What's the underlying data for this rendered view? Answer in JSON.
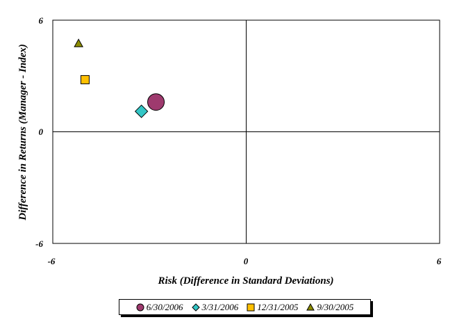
{
  "chart_data": {
    "type": "scatter",
    "xlabel": "Risk (Difference in Standard Deviations)",
    "ylabel": "Difference in Returns (Manager - Index)",
    "xlim": [
      -6,
      6
    ],
    "ylim": [
      -6,
      6
    ],
    "x_ticks": [
      "-6",
      "0",
      "6"
    ],
    "y_ticks": [
      "6",
      "0",
      "-6"
    ],
    "grid": false,
    "legend_position": "bottom",
    "series": [
      {
        "name": "6/30/2006",
        "marker": "circle",
        "color": "#9e3a6e",
        "points": [
          {
            "x": -2.8,
            "y": 1.6
          }
        ]
      },
      {
        "name": "3/31/2006",
        "marker": "diamond",
        "color": "#33c6c6",
        "points": [
          {
            "x": -3.25,
            "y": 1.1
          }
        ]
      },
      {
        "name": "12/31/2005",
        "marker": "square",
        "color": "#ffc000",
        "points": [
          {
            "x": -5.0,
            "y": 2.8
          }
        ]
      },
      {
        "name": "9/30/2005",
        "marker": "triangle",
        "color": "#8c8c00",
        "points": [
          {
            "x": -5.2,
            "y": 4.75
          }
        ]
      }
    ]
  }
}
